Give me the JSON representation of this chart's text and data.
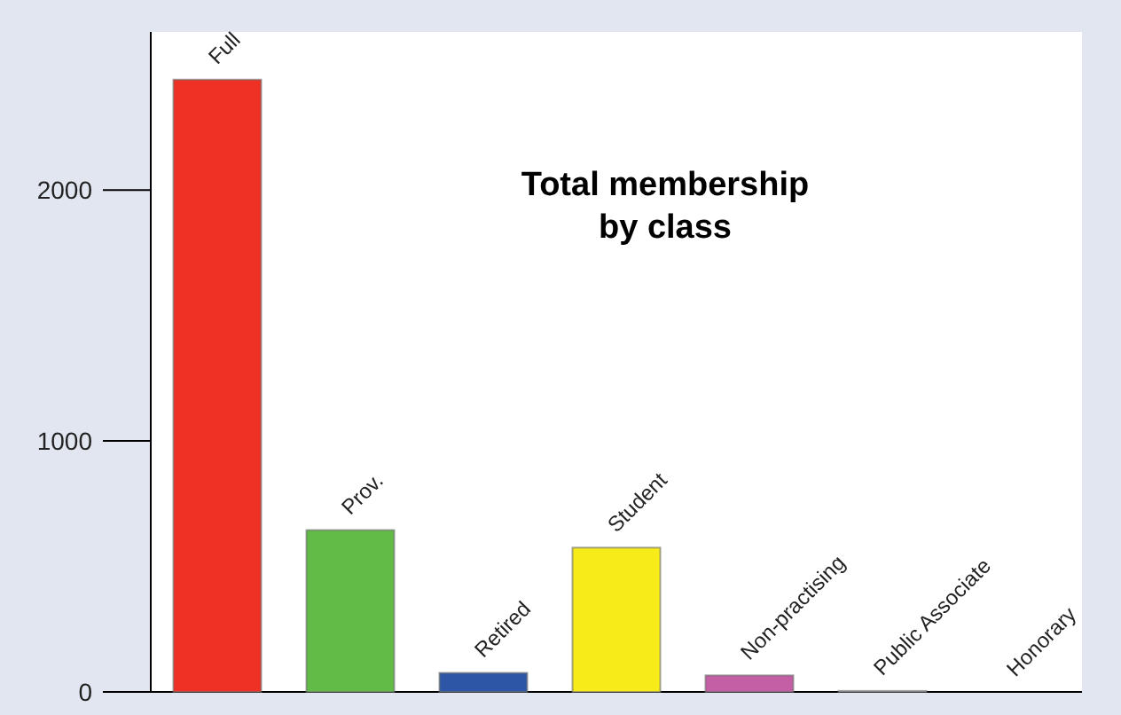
{
  "chart_data": {
    "type": "bar",
    "title": "Total membership\nby class",
    "categories": [
      "Full",
      "Prov.",
      "Retired",
      "Student",
      "Non-practising",
      "Public Associate",
      "Honorary"
    ],
    "values": [
      2440,
      645,
      76,
      575,
      66,
      4,
      0
    ],
    "colors": [
      "#ee3124",
      "#62bb46",
      "#2e56a6",
      "#f7ec1a",
      "#c45ea5",
      "#9ba0b0",
      "#9ba0b0"
    ],
    "ylim": [
      0,
      2630
    ],
    "yticks": [
      0,
      1000,
      2000
    ],
    "grid": false
  }
}
